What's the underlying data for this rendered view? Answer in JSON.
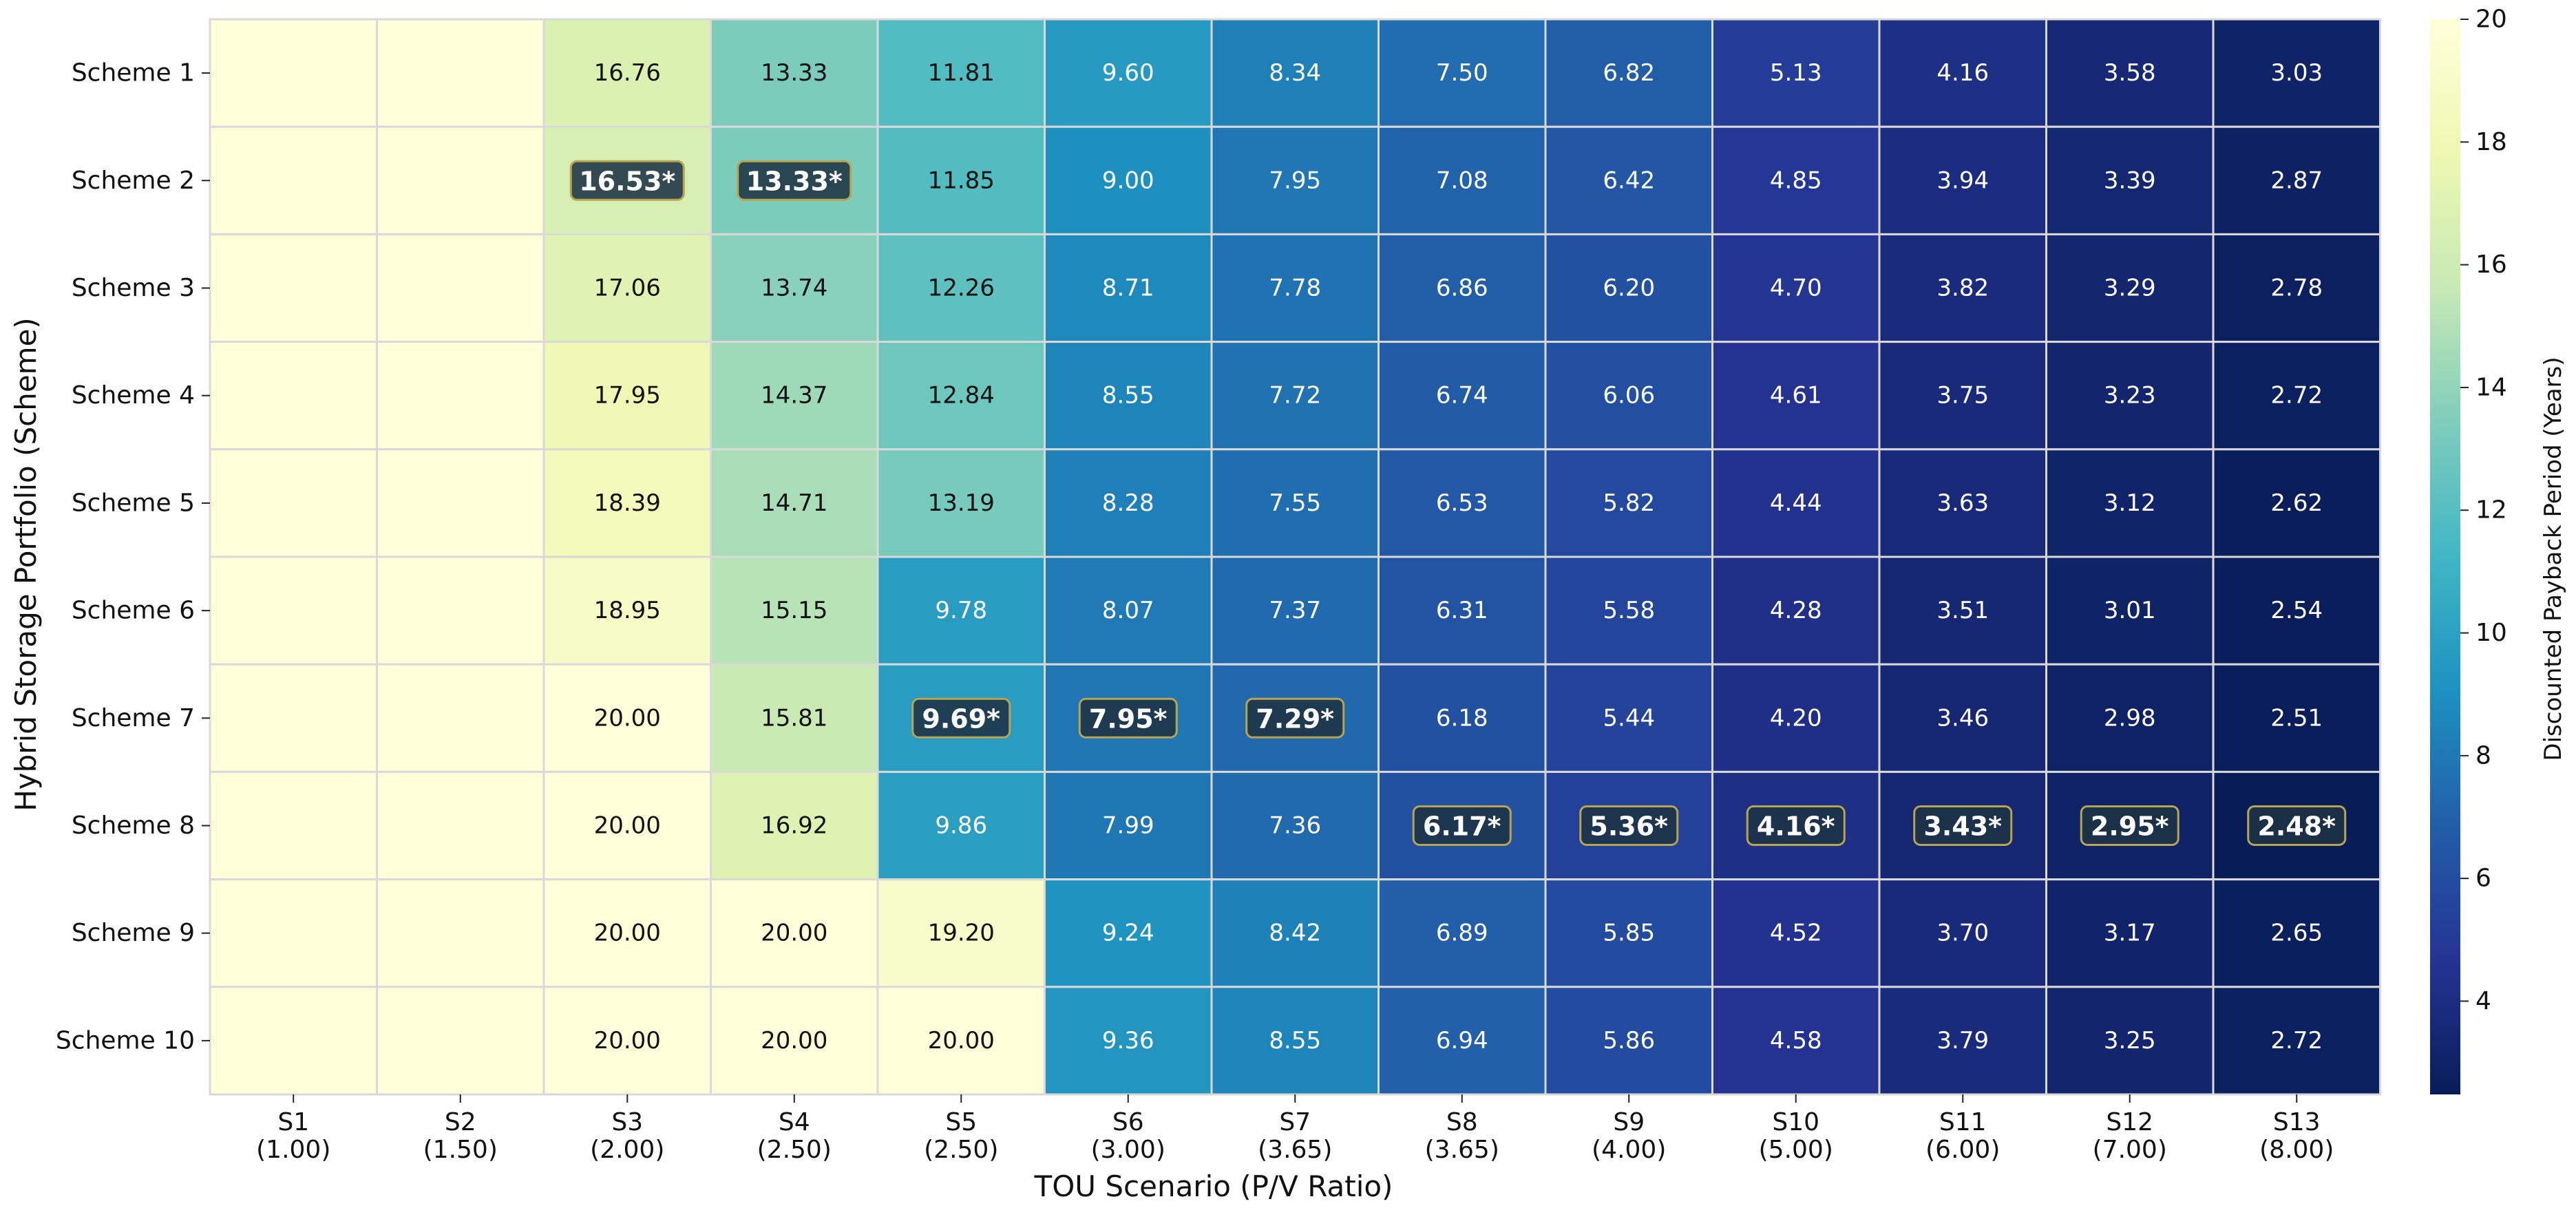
{
  "chart_data": {
    "type": "heatmap",
    "xlabel": "TOU Scenario (P/V Ratio)",
    "ylabel": "Hybrid Storage Portfolio (Scheme)",
    "colorbar_label": "Discounted Payback Period (Years)",
    "colormap": "YlGnBu_r",
    "value_range": [
      2.48,
      20
    ],
    "colorbar_ticks": [
      4,
      6,
      8,
      10,
      12,
      14,
      16,
      18,
      20
    ],
    "x_categories": [
      {
        "name": "S1",
        "ratio": "(1.00)"
      },
      {
        "name": "S2",
        "ratio": "(1.50)"
      },
      {
        "name": "S3",
        "ratio": "(2.00)"
      },
      {
        "name": "S4",
        "ratio": "(2.50)"
      },
      {
        "name": "S5",
        "ratio": "(2.50)"
      },
      {
        "name": "S6",
        "ratio": "(3.00)"
      },
      {
        "name": "S7",
        "ratio": "(3.65)"
      },
      {
        "name": "S8",
        "ratio": "(3.65)"
      },
      {
        "name": "S9",
        "ratio": "(4.00)"
      },
      {
        "name": "S10",
        "ratio": "(5.00)"
      },
      {
        "name": "S11",
        "ratio": "(6.00)"
      },
      {
        "name": "S12",
        "ratio": "(7.00)"
      },
      {
        "name": "S13",
        "ratio": "(8.00)"
      }
    ],
    "y_categories": [
      "Scheme 1",
      "Scheme 2",
      "Scheme 3",
      "Scheme 4",
      "Scheme 5",
      "Scheme 6",
      "Scheme 7",
      "Scheme 8",
      "Scheme 9",
      "Scheme 10"
    ],
    "values": [
      [
        null,
        null,
        16.76,
        13.33,
        11.81,
        9.6,
        8.34,
        7.5,
        6.82,
        5.13,
        4.16,
        3.58,
        3.03
      ],
      [
        null,
        null,
        16.53,
        13.33,
        11.85,
        9.0,
        7.95,
        7.08,
        6.42,
        4.85,
        3.94,
        3.39,
        2.87
      ],
      [
        null,
        null,
        17.06,
        13.74,
        12.26,
        8.71,
        7.78,
        6.86,
        6.2,
        4.7,
        3.82,
        3.29,
        2.78
      ],
      [
        null,
        null,
        17.95,
        14.37,
        12.84,
        8.55,
        7.72,
        6.74,
        6.06,
        4.61,
        3.75,
        3.23,
        2.72
      ],
      [
        null,
        null,
        18.39,
        14.71,
        13.19,
        8.28,
        7.55,
        6.53,
        5.82,
        4.44,
        3.63,
        3.12,
        2.62
      ],
      [
        null,
        null,
        18.95,
        15.15,
        9.78,
        8.07,
        7.37,
        6.31,
        5.58,
        4.28,
        3.51,
        3.01,
        2.54
      ],
      [
        null,
        null,
        20.0,
        15.81,
        9.69,
        7.95,
        7.29,
        6.18,
        5.44,
        4.2,
        3.46,
        2.98,
        2.51
      ],
      [
        null,
        null,
        20.0,
        16.92,
        9.86,
        7.99,
        7.36,
        6.17,
        5.36,
        4.16,
        3.43,
        2.95,
        2.48
      ],
      [
        null,
        null,
        20.0,
        20.0,
        19.2,
        9.24,
        8.42,
        6.89,
        5.85,
        4.52,
        3.7,
        3.17,
        2.65
      ],
      [
        null,
        null,
        20.0,
        20.0,
        20.0,
        9.36,
        8.55,
        6.94,
        5.86,
        4.58,
        3.79,
        3.25,
        2.72
      ]
    ],
    "highlighted_cells": [
      {
        "row": 1,
        "col": 2,
        "label": "16.53*"
      },
      {
        "row": 1,
        "col": 3,
        "label": "13.33*"
      },
      {
        "row": 6,
        "col": 4,
        "label": "9.69*"
      },
      {
        "row": 6,
        "col": 5,
        "label": "7.95*"
      },
      {
        "row": 6,
        "col": 6,
        "label": "7.29*"
      },
      {
        "row": 7,
        "col": 7,
        "label": "6.17*"
      },
      {
        "row": 7,
        "col": 8,
        "label": "5.36*"
      },
      {
        "row": 7,
        "col": 9,
        "label": "4.16*"
      },
      {
        "row": 7,
        "col": 10,
        "label": "3.43*"
      },
      {
        "row": 7,
        "col": 11,
        "label": "2.95*"
      },
      {
        "row": 7,
        "col": 12,
        "label": "2.48*"
      }
    ]
  }
}
